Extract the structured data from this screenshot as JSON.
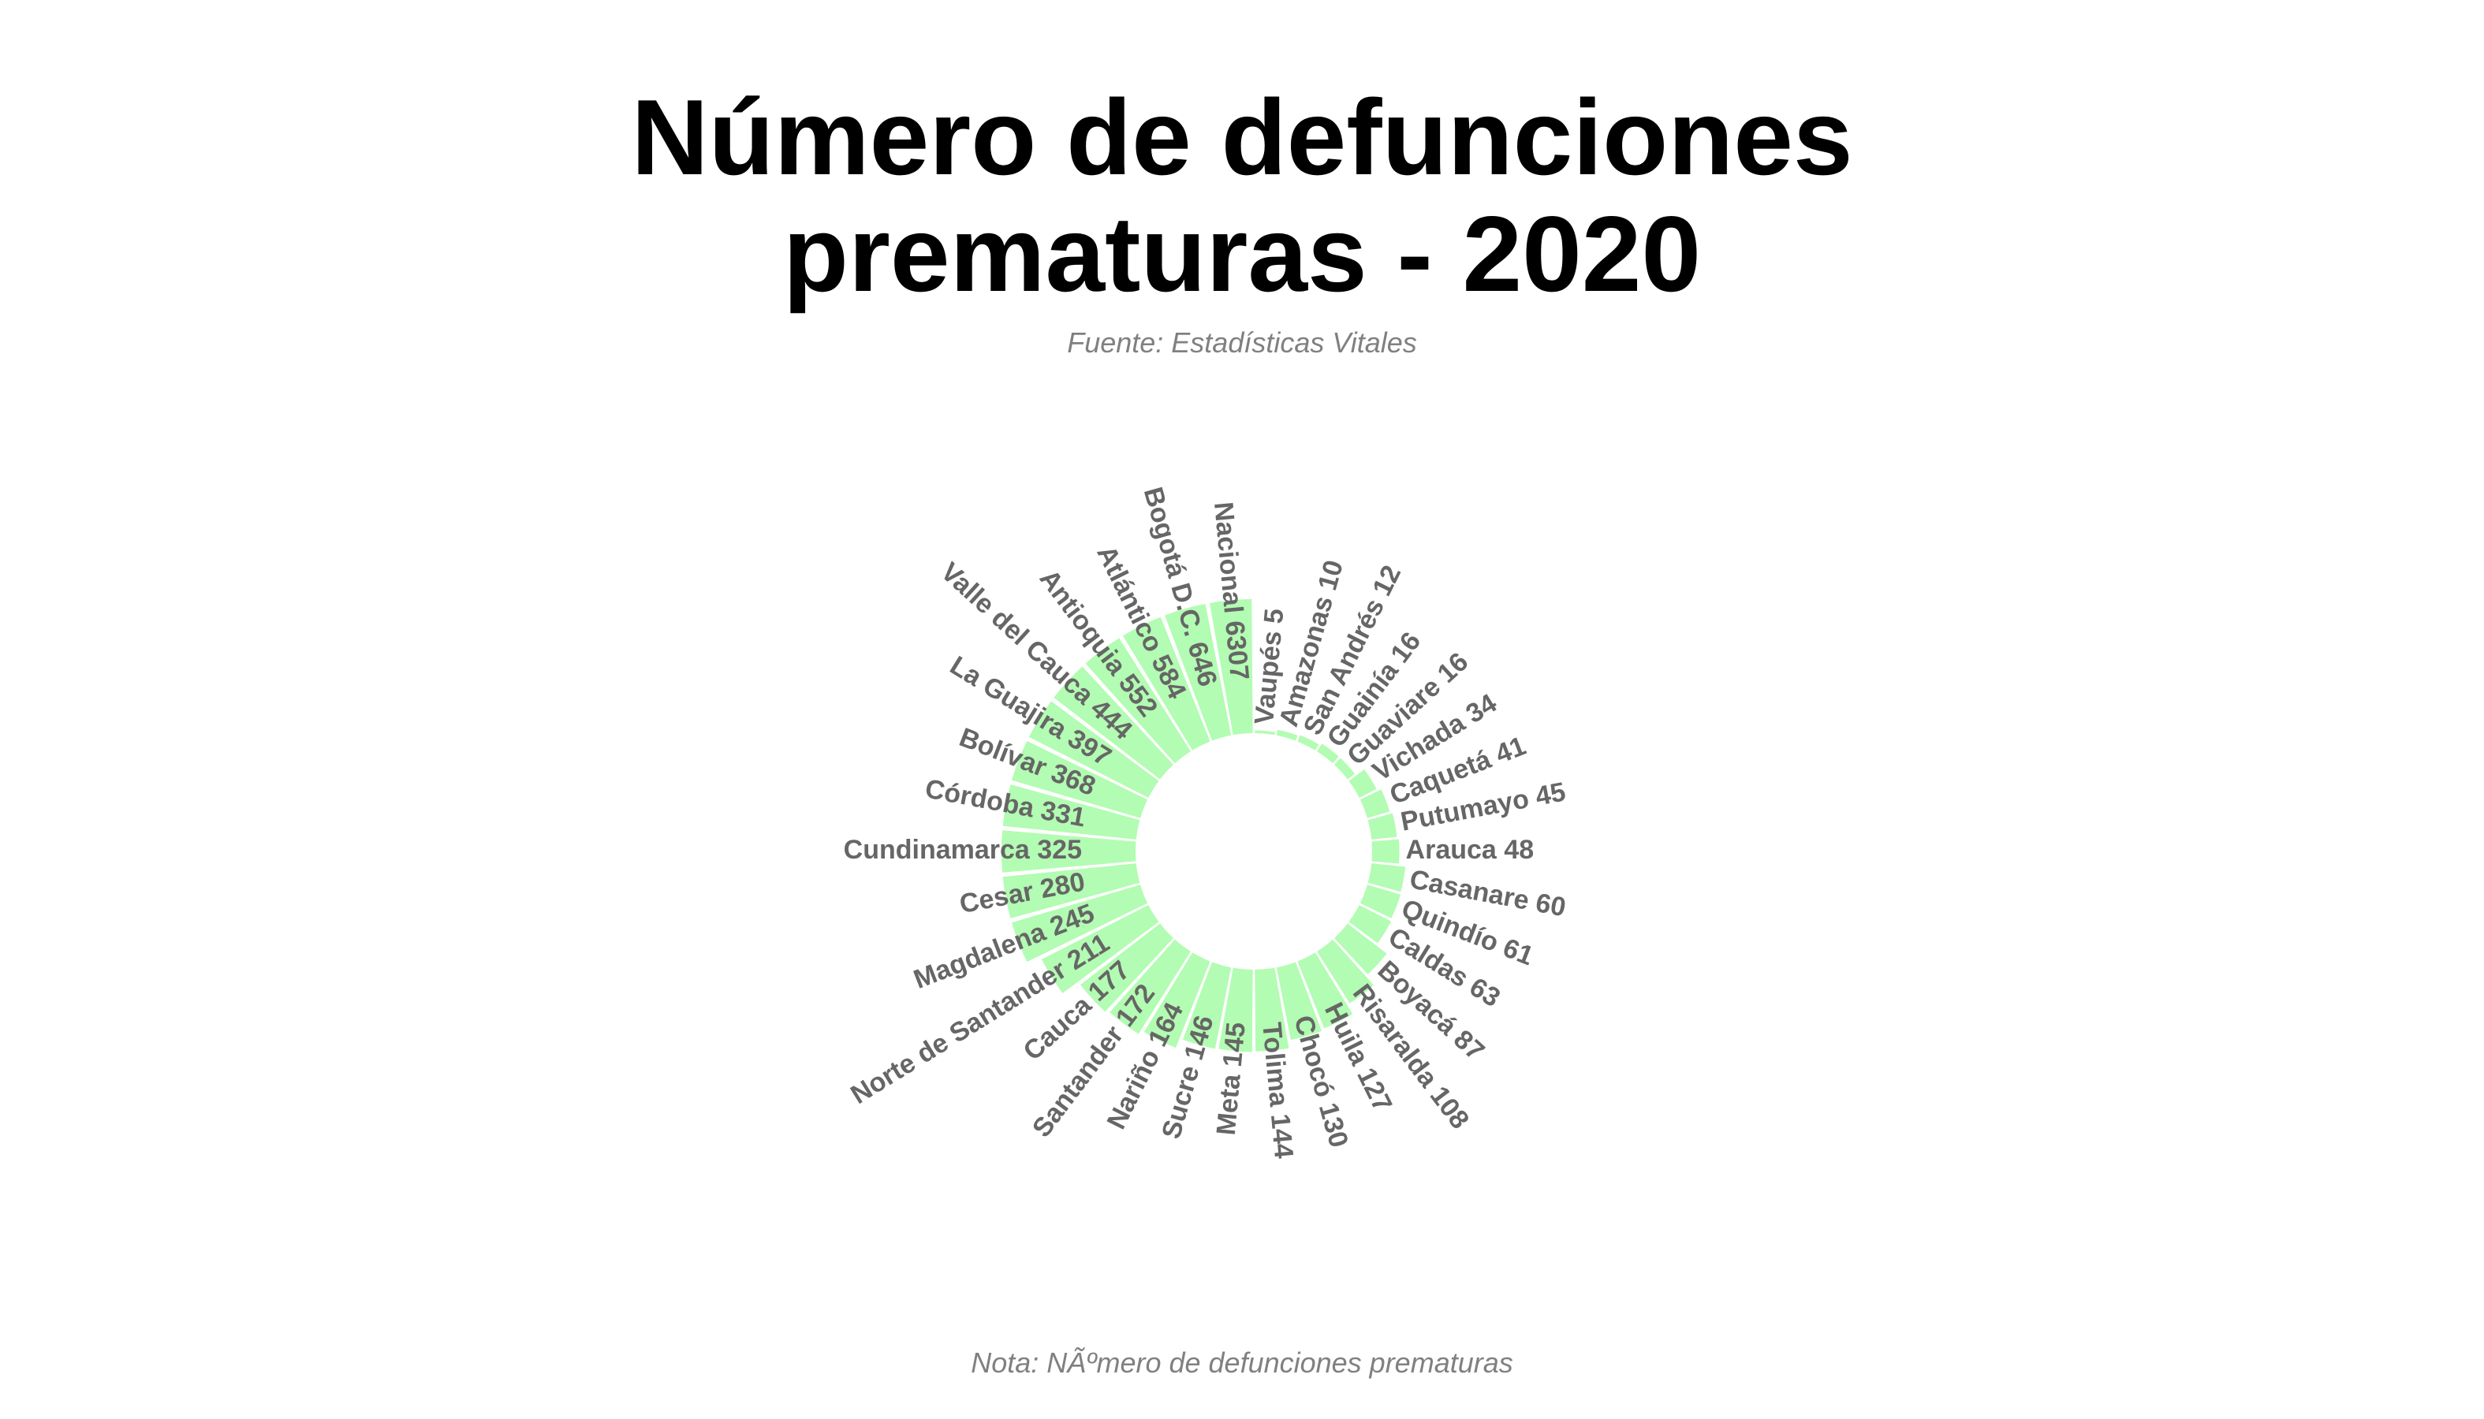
{
  "chart_data": {
    "type": "bar",
    "polar": true,
    "title_lines": [
      "Número de defunciones",
      "prematuras - 2020"
    ],
    "subtitle": "Fuente: Estadísticas Vitales",
    "caption": "Nota: NÃºmero de defunciones prematuras",
    "bar_color": "#b3fcb3",
    "label_color": "#666666",
    "categories": [
      "Vaupés",
      "Amazonas",
      "San Andrés",
      "Guainía",
      "Guaviare",
      "Vichada",
      "Caquetá",
      "Putumayo",
      "Arauca",
      "Casanare",
      "Quindío",
      "Caldas",
      "Boyacá",
      "Risaralda",
      "Huila",
      "Chocó",
      "Tolima",
      "Meta",
      "Sucre",
      "Nariño",
      "Santander",
      "Cauca",
      "Norte de Santander",
      "Magdalena",
      "Cesar",
      "Cundinamarca",
      "Córdoba",
      "Bolívar",
      "La Guajira",
      "Valle del Cauca",
      "Antioquia",
      "Atlántico",
      "Bogotá D.C.",
      "Nacional"
    ],
    "values": [
      5,
      10,
      12,
      16,
      16,
      34,
      41,
      45,
      48,
      60,
      61,
      63,
      87,
      108,
      127,
      130,
      144,
      145,
      146,
      164,
      172,
      177,
      211,
      245,
      280,
      325,
      331,
      368,
      397,
      444,
      552,
      584,
      646,
      6307
    ],
    "labels": [
      "Vaupés 5",
      "Amazonas 10",
      "San Andrés 12",
      "Guainía 16",
      "Guaviare 16",
      "Vichada 34",
      "Caquetá 41",
      "Putumayo 45",
      "Arauca 48",
      "Casanare 60",
      "Quindío 61",
      "Caldas 63",
      "Boyacá 87",
      "Risaralda 108",
      "Huila 127",
      "Chocó 130",
      "Tolima 144",
      "Meta 145",
      "Sucre 146",
      "Nariño 164",
      "Santander 172",
      "Cauca 177",
      "Norte de Santander 211",
      "Magdalena 245",
      "Cesar 280",
      "Cundinamarca 325",
      "Córdoba 331",
      "Bolívar 368",
      "La Guajira 397",
      "Valle del Cauca 444",
      "Antioquia 552",
      "Atlántico 584",
      "Bogotá D.C. 646",
      "Nacional 6307"
    ],
    "grid": false,
    "legend": "none"
  }
}
